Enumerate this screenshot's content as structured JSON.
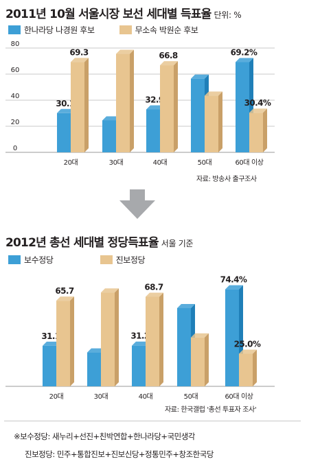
{
  "colors": {
    "blue": "#3d9fd6",
    "blue_dark": "#1f7fb8",
    "tan": "#e8c590",
    "tan_dark": "#c9a068",
    "arrow": "#a7a9ac"
  },
  "arrow_icon": "down-arrow-icon",
  "chart_data": [
    {
      "type": "bar",
      "title": "2011년 10월 서울시장 보선 세대별 득표율",
      "unit_label": "단위: %",
      "categories": [
        "20대",
        "30대",
        "40대",
        "50대",
        "60대 이상"
      ],
      "series": [
        {
          "name": "한나라당 나경원 후보",
          "values": [
            30.1,
            24.5,
            32.9,
            56.5,
            69.2
          ],
          "labels": [
            "30.1",
            "",
            "32.9",
            "",
            "69.2%"
          ]
        },
        {
          "name": "무소속 박원순 후보",
          "values": [
            69.3,
            75.5,
            66.8,
            43.5,
            30.4
          ],
          "labels": [
            "69.3",
            "",
            "66.8",
            "",
            "30.4%"
          ]
        }
      ],
      "yticks": [
        "80",
        "60",
        "40",
        "20",
        "0"
      ],
      "ylim": [
        0,
        80
      ],
      "source": "자료: 방송사 출구조사"
    },
    {
      "type": "bar",
      "title": "2012년 총선 세대별 정당득표율",
      "unit_label": "서울 기준",
      "categories": [
        "20대",
        "30대",
        "40대",
        "50대",
        "60대 이상"
      ],
      "series": [
        {
          "name": "보수정당",
          "values": [
            31.1,
            26.0,
            31.2,
            60.0,
            74.4
          ],
          "labels": [
            "31.1",
            "",
            "31.2",
            "",
            "74.4%"
          ]
        },
        {
          "name": "진보정당",
          "values": [
            65.7,
            72.0,
            68.7,
            37.5,
            25.0
          ],
          "labels": [
            "65.7",
            "",
            "68.7",
            "",
            "25.0%"
          ]
        }
      ],
      "yticks": [],
      "ylim": [
        0,
        80
      ],
      "source": "자료: 한국갤럽 '총선 투표자 조사'"
    }
  ],
  "notes": {
    "conservative": "※보수정당: 새누리+선진+친박연합+한나라당+국민생각",
    "progressive": "진보정당: 민주+통합진보+진보신당+정통민주+창조한국당"
  }
}
